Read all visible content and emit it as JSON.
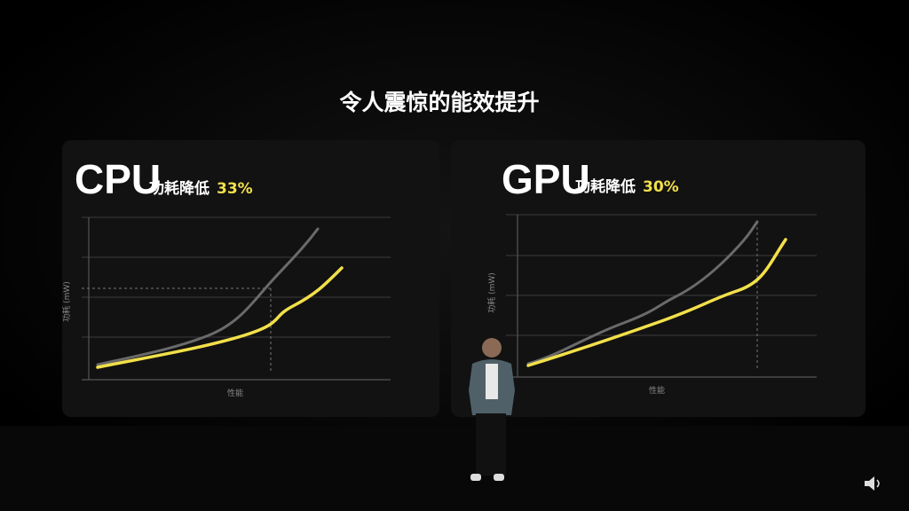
{
  "title": "令人震惊的能效提升",
  "panels": [
    {
      "chip": "CPU",
      "claim": "功耗降低",
      "reduction": "33%",
      "y_axis_label": "功耗 (mW)",
      "x_axis_label": "性能"
    },
    {
      "chip": "GPU",
      "claim": "功耗降低",
      "reduction": "30%",
      "y_axis_label": "功耗 (mW)",
      "x_axis_label": "性能"
    }
  ]
}
